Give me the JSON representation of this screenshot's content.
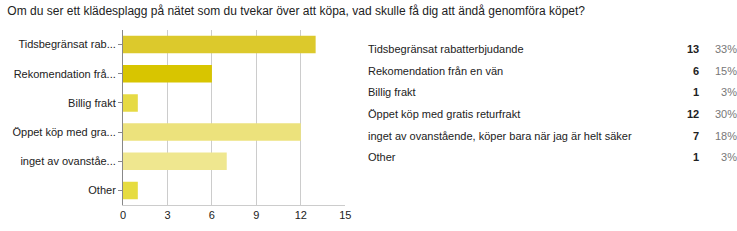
{
  "chart_data": {
    "type": "bar",
    "orientation": "horizontal",
    "title": "Om du ser ett klädesplagg på nätet som du tvekar över att köpa, vad skulle få dig att ändå genomföra köpet?",
    "categories": [
      "Tidsbegränsat rab...",
      "Rekomendation frå...",
      "Billig frakt",
      "Öppet köp med gra...",
      "inget av ovanståe...",
      "Other"
    ],
    "values": [
      13,
      6,
      1,
      12,
      7,
      1
    ],
    "colors": [
      "#dcc92c",
      "#d8c500",
      "#e6da44",
      "#ece27c",
      "#efe78f",
      "#e6dc40"
    ],
    "xlim": [
      0,
      15
    ],
    "xticks": [
      0,
      3,
      6,
      9,
      12,
      15
    ],
    "grid": true
  },
  "table": {
    "rows": [
      [
        "Tidsbegränsat rabatterbjudande",
        "13",
        "33%"
      ],
      [
        "Rekomendation från en vän",
        "6",
        "15%"
      ],
      [
        "Billig frakt",
        "1",
        "3%"
      ],
      [
        "Öppet köp med gratis returfrakt",
        "12",
        "30%"
      ],
      [
        "inget av ovanstående, köper bara när jag är helt säker",
        "7",
        "18%"
      ],
      [
        "Other",
        "1",
        "3%"
      ]
    ]
  }
}
